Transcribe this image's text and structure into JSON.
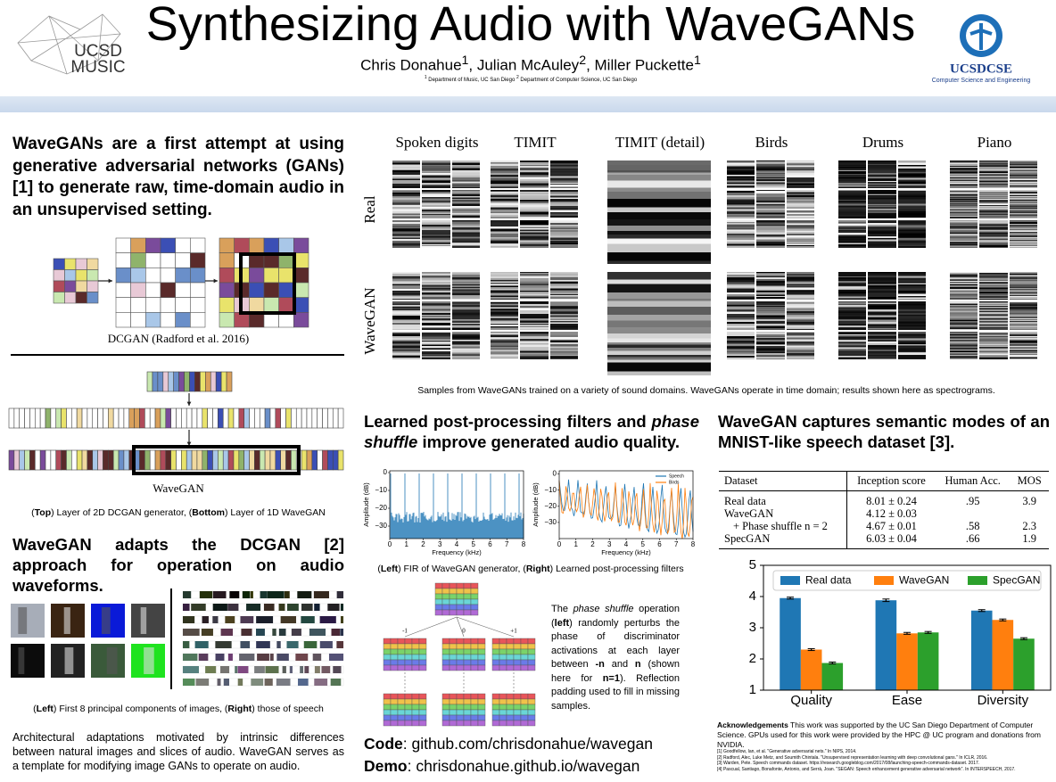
{
  "header": {
    "title": "Synthesizing Audio with WaveGANs",
    "authors": [
      "Chris Donahue",
      {
        "sup": "1"
      },
      ", Julian McAuley",
      {
        "sup": "2"
      },
      ", Miller Puckette",
      {
        "sup": "1"
      }
    ],
    "affiliations": [
      "",
      {
        "sup": "1"
      },
      " Department of Music, UC San Diego ",
      {
        "sup": "2"
      },
      " Department of Computer Science, UC San Diego"
    ],
    "logo_left": [
      "UCSD",
      "MUSIC"
    ],
    "logo_right": "UCSDCSE",
    "logo_right_sub": "Computer Science and Engineering"
  },
  "intro": "WaveGANs are a first attempt at using generative adversarial networks (GANs) [1] to generate raw, time-domain audio in an unsupervised setting.",
  "fig1": {
    "dcgan_label": "DCGAN (Radford et al. 2016)",
    "wavegan_label": "WaveGAN",
    "caption": [
      "(",
      {
        "b": "Top"
      },
      ") Layer of 2D DCGAN generator, (",
      {
        "b": "Bottom"
      },
      ") Layer of 1D WaveGAN"
    ]
  },
  "section2": {
    "heading": "WaveGAN adapts the DCGAN [2] approach for operation on audio waveforms.",
    "caption": [
      "(",
      {
        "b": "Left"
      },
      ") First 8 principal components of images, (",
      {
        "b": "Right"
      },
      ") those of speech"
    ],
    "text": "Architectural adaptations motivated by intrinsic differences between natural images and slices of audio. WaveGAN serves as a template for modifying image GANs to operate on audio."
  },
  "spectrograms": {
    "columns": [
      "Spoken digits",
      "TIMIT",
      "TIMIT (detail)",
      "Birds",
      "Drums",
      "Piano"
    ],
    "rows": [
      "Real",
      "WaveGAN"
    ],
    "caption": "Samples from WaveGANs trained on a variety of sound domains. WaveGANs operate in time domain; results shown here as spectrograms."
  },
  "section3": {
    "heading": [
      "Learned post-processing filters and ",
      {
        "i": "phase shuffle"
      },
      " improve generated audio quality."
    ],
    "fir_left": {
      "xlabel": "Frequency (kHz)",
      "ylabel": "Amplitude (dB)",
      "xlim": [
        0,
        8
      ],
      "xticks": [
        0,
        1,
        2,
        3,
        4,
        5,
        6,
        7,
        8
      ],
      "ylim": [
        -37,
        1
      ],
      "yticks": [
        0,
        {
          "value": -10,
          "label": "−10"
        },
        {
          "value": -20,
          "label": "−20"
        },
        {
          "value": -30,
          "label": "−30"
        }
      ]
    },
    "fir_right": {
      "xlabel": "Frequency (kHz)",
      "ylabel": "Amplitude (dB)",
      "xlim": [
        0,
        8
      ],
      "xticks": [
        0,
        1,
        2,
        3,
        4,
        5,
        6,
        7,
        8
      ],
      "ylim": [
        -40,
        2
      ],
      "yticks": [
        0,
        {
          "value": -10,
          "label": "−10"
        },
        {
          "value": -20,
          "label": "−20"
        },
        {
          "value": -30,
          "label": "−30"
        }
      ],
      "legend": [
        "Speech",
        "Birds"
      ]
    },
    "caption": [
      "(",
      {
        "b": "Left"
      },
      ") FIR of WaveGAN generator, (",
      {
        "b": "Right"
      },
      ") Learned post-processing filters"
    ],
    "shift_labels": [
      "-1",
      "0",
      "+1"
    ],
    "phase_text": [
      "The ",
      {
        "i": "phase shuffle"
      },
      " operation (",
      {
        "b": "left"
      },
      ") randomly perturbs the phase of discriminator activations at each layer between ",
      {
        "b": "-n"
      },
      " and ",
      {
        "b": "n"
      },
      " (shown here for ",
      {
        "b": "n=1"
      },
      "). Reflection padding used to fill in missing samples."
    ],
    "code": [
      {
        "b": "Code"
      },
      ": github.com/chrisdonahue/wavegan"
    ],
    "demo": [
      {
        "b": "Demo"
      },
      ": chrisdonahue.github.io/wavegan"
    ]
  },
  "section4": {
    "heading": "WaveGAN captures semantic modes of an MNIST-like speech dataset [3].",
    "table": {
      "header": [
        "Dataset",
        "Inception score",
        "Human Acc.",
        "MOS"
      ],
      "rows": [
        [
          "Real data",
          "8.01 ± 0.24",
          ".95",
          "3.9"
        ],
        [
          "WaveGAN",
          "4.12 ± 0.03",
          null,
          null
        ],
        [
          "+ Phase shuffle n = 2",
          "4.67 ± 0.01",
          ".58",
          "2.3"
        ],
        [
          "SpecGAN",
          "6.03 ± 0.04",
          ".66",
          "1.9"
        ]
      ]
    },
    "acknowledgements": [
      {
        "b": "Acknowledgements"
      },
      " This work was supported by the UC San Diego Department of Computer Science. GPUs used for this work were provided by the HPC @ UC program and donations from NVIDIA."
    ],
    "references": [
      "[1] Goodfellow, Ian, et al. \"Generative adversarial nets.\" In NIPS, 2014.",
      "[2] Radford, Alec, Luke Metz, and Soumith Chintala. \"Unsupervised representation learning with deep convolutional gans.\" In ICLR, 2016.",
      "[3] Warden, Pete. Speech commands dataset. https://research.googleblog.com/2017/08/launching-speech-commands-dataset. 2017.",
      "[4] Pascual, Santiago, Bonafonte, Antonio, and Serrà, Joan. \"SEGAN: Speech enhancement generative adversarial network\". In INTERSPEECH, 2017."
    ]
  },
  "chart_data": {
    "type": "bar",
    "categories": [
      "Quality",
      "Ease",
      "Diversity"
    ],
    "series": [
      {
        "name": "Real data",
        "color": "#1f77b4",
        "values": [
          3.95,
          3.88,
          3.55
        ],
        "errors": [
          0.03,
          0.04,
          0.03
        ]
      },
      {
        "name": "WaveGAN",
        "color": "#ff7f0e",
        "values": [
          2.3,
          2.82,
          3.25
        ],
        "errors": [
          0.03,
          0.03,
          0.03
        ]
      },
      {
        "name": "SpecGAN",
        "color": "#2ca02c",
        "values": [
          1.87,
          2.85,
          2.65
        ],
        "errors": [
          0.03,
          0.03,
          0.03
        ]
      }
    ],
    "ylim": [
      1,
      5
    ],
    "yticks": [
      1,
      2,
      3,
      4,
      5
    ],
    "legend": "upper center"
  }
}
